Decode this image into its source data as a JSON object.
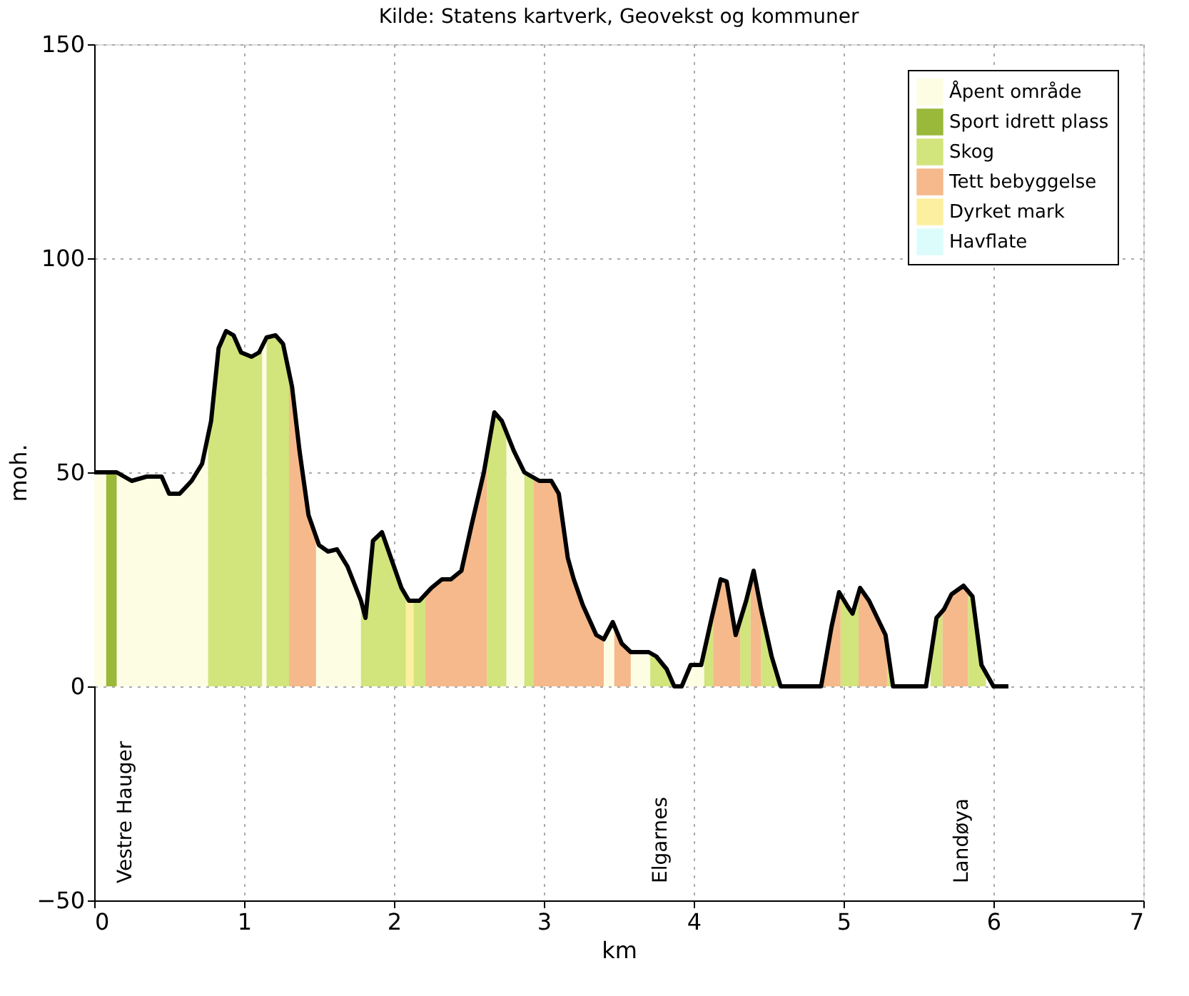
{
  "chart_data": {
    "type": "area",
    "title": "Kilde: Statens kartverk, Geovekst og kommuner",
    "xlabel": "km",
    "ylabel": "moh.",
    "xlim": [
      0,
      7
    ],
    "xticks": [
      0,
      1,
      2,
      3,
      4,
      5,
      6,
      7
    ],
    "ylim": [
      -50,
      150
    ],
    "yticks": [
      -50,
      0,
      50,
      100,
      150
    ],
    "grid": true,
    "legend": "top right",
    "annotations": [
      "Vestre Hauger",
      "Elgarnes",
      "Landøya"
    ],
    "series": [
      {
        "name": "Åpent område",
        "color": "#fdfde4",
        "x": [
          0,
          0.08,
          0.12,
          0.15,
          0.25,
          0.35,
          0.45,
          0.5,
          0.57,
          0.65,
          0.72,
          0.76,
          0.9,
          1.12,
          1.15,
          1.3,
          1.48,
          1.5,
          1.56,
          1.62,
          1.69,
          1.78,
          2.3,
          2.75,
          2.8,
          2.87,
          3.1,
          3.4,
          3.46,
          3.47,
          3.5,
          3.58,
          3.7,
          3.71,
          3.8,
          3.95,
          3.98,
          4.05,
          4.07
        ],
        "values": [
          50,
          50,
          null,
          50,
          48,
          49,
          49,
          45,
          45,
          48,
          52,
          57,
          null,
          79,
          81.5,
          null,
          35,
          33,
          31.5,
          32,
          28,
          20,
          null,
          60,
          55,
          50,
          null,
          11,
          15,
          14,
          null,
          8,
          8,
          8,
          null,
          3,
          5,
          5,
          8
        ]
      },
      {
        "name": "Sport idrett plass",
        "color": "#9ab83a",
        "x": [
          0.08,
          0.15
        ],
        "values": [
          50,
          50
        ]
      },
      {
        "name": "Skog",
        "color": "#d2e47c",
        "x": [
          0.76,
          0.78,
          0.83,
          0.88,
          0.93,
          0.98,
          1.05,
          1.1,
          1.12,
          1.13,
          1.15,
          1.21,
          1.26,
          1.3,
          1.5,
          1.78,
          1.81,
          1.86,
          1.92,
          1.98,
          2.05,
          2.08,
          2.1,
          2.13,
          2.17,
          2.21,
          2.4,
          2.62,
          2.67,
          2.72,
          2.75,
          2.8,
          2.87,
          2.92,
          2.93,
          3.3,
          3.71,
          3.75,
          3.82,
          3.85,
          3.95,
          4.07,
          4.12,
          4.13,
          4.2,
          4.31,
          4.35,
          4.38,
          4.4,
          4.45,
          4.52,
          4.57,
          4.8,
          4.98,
          5.03,
          5.06,
          5.1,
          5.2,
          5.29,
          5.33,
          5.45,
          5.58,
          5.62,
          5.66,
          5.75,
          5.83,
          5.86,
          5.92,
          5.95
        ],
        "values": [
          57,
          62,
          79,
          83,
          82,
          78,
          77,
          78,
          79,
          null,
          81.5,
          82,
          80,
          74,
          null,
          20,
          16,
          34,
          36,
          30,
          23,
          21,
          null,
          20,
          20,
          21.5,
          null,
          55,
          64,
          62,
          60,
          null,
          50,
          49,
          49,
          null,
          8,
          7,
          4,
          2,
          null,
          8,
          16,
          18,
          null,
          16,
          20,
          24,
          null,
          18,
          7,
          1,
          null,
          21.5,
          18.5,
          17,
          22,
          null,
          10,
          2,
          null,
          5,
          16,
          17.5,
          null,
          22,
          21,
          5,
          2
        ]
      },
      {
        "name": "Tett bebyggelse",
        "color": "#f5b98b",
        "x": [
          1.3,
          1.32,
          1.37,
          1.43,
          1.48,
          1.8,
          2.21,
          2.25,
          2.32,
          2.38,
          2.45,
          2.52,
          2.6,
          2.62,
          2.8,
          2.93,
          2.97,
          3.05,
          3.1,
          3.16,
          3.2,
          3.26,
          3.35,
          3.4,
          3.44,
          3.47,
          3.52,
          3.58,
          3.9,
          4.13,
          4.18,
          4.22,
          4.28,
          4.31,
          4.35,
          4.38,
          4.4,
          4.45,
          4.7,
          4.86,
          4.92,
          4.97,
          4.98,
          5.05,
          5.1,
          5.11,
          5.17,
          5.28,
          5.29,
          5.5,
          5.66,
          5.67,
          5.72,
          5.8,
          5.83
        ],
        "values": [
          74,
          70,
          55,
          40,
          35,
          null,
          21.5,
          23,
          25,
          25,
          27,
          38,
          50,
          55,
          null,
          49,
          48,
          48,
          45,
          30,
          25,
          19,
          12,
          11,
          null,
          14,
          10,
          8,
          null,
          18,
          25,
          24.5,
          12,
          16,
          null,
          24,
          27,
          18,
          null,
          0,
          14,
          22,
          21.5,
          null,
          22,
          23,
          20,
          12,
          10,
          null,
          17.5,
          18,
          21.5,
          23.5,
          22
        ]
      },
      {
        "name": "Dyrket mark",
        "color": "#fcf0a0",
        "x": [
          2.08,
          2.13
        ],
        "values": [
          21,
          20
        ]
      },
      {
        "name": "Havflate",
        "color": "#dcfcfc"
      },
      {
        "type": "line",
        "color": "#000000",
        "x": [
          0,
          0.15,
          0.25,
          0.35,
          0.45,
          0.5,
          0.57,
          0.65,
          0.72,
          0.78,
          0.83,
          0.88,
          0.93,
          0.98,
          1.05,
          1.1,
          1.15,
          1.21,
          1.26,
          1.32,
          1.37,
          1.43,
          1.5,
          1.56,
          1.62,
          1.69,
          1.78,
          1.81,
          1.86,
          1.92,
          1.98,
          2.05,
          2.1,
          2.17,
          2.25,
          2.32,
          2.38,
          2.45,
          2.52,
          2.6,
          2.67,
          2.72,
          2.8,
          2.87,
          2.92,
          2.97,
          3.05,
          3.1,
          3.16,
          3.2,
          3.26,
          3.35,
          3.4,
          3.46,
          3.52,
          3.58,
          3.7,
          3.75,
          3.82,
          3.87,
          3.92,
          3.98,
          4.05,
          4.12,
          4.18,
          4.22,
          4.28,
          4.35,
          4.4,
          4.45,
          4.52,
          4.58,
          4.85,
          4.92,
          4.97,
          5.03,
          5.06,
          5.11,
          5.17,
          5.28,
          5.33,
          5.55,
          5.62,
          5.67,
          5.72,
          5.8,
          5.86,
          5.92,
          6.0,
          6.1
        ],
        "values": [
          50,
          50,
          48,
          49,
          49,
          45,
          45,
          48,
          52,
          62,
          79,
          83,
          82,
          78,
          77,
          78,
          81.5,
          82,
          80,
          70,
          55,
          40,
          33,
          31.5,
          32,
          28,
          20,
          16,
          34,
          36,
          30,
          23,
          20,
          20,
          23,
          25,
          25,
          27,
          38,
          50,
          64,
          62,
          55,
          50,
          49,
          48,
          48,
          45,
          30,
          25,
          19,
          12,
          11,
          15,
          10,
          8,
          8,
          7,
          4,
          0,
          0,
          5,
          5,
          16,
          25,
          24.5,
          12,
          20,
          27,
          18,
          7,
          0,
          0,
          14,
          22,
          18.5,
          17,
          23,
          20,
          12,
          0,
          0,
          16,
          18,
          21.5,
          23.5,
          21,
          5,
          0,
          0
        ]
      }
    ]
  }
}
